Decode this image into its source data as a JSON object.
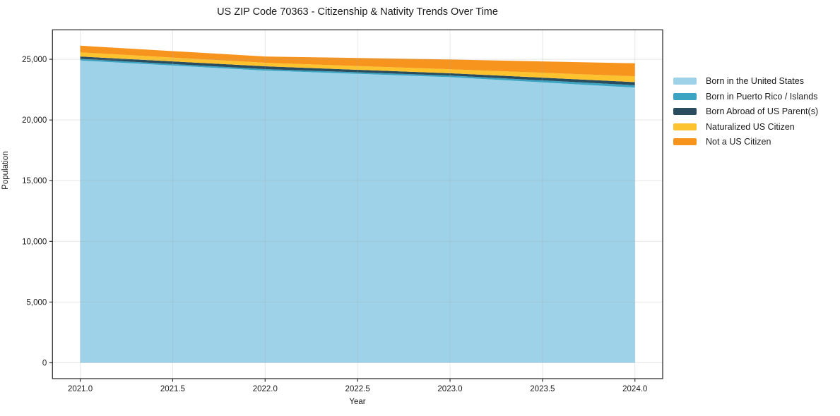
{
  "chart_data": {
    "type": "area",
    "stacked": true,
    "title": "US ZIP Code 70363 - Citizenship & Nativity Trends Over Time",
    "xlabel": "Year",
    "ylabel": "Population",
    "x": [
      2021,
      2022,
      2023,
      2024
    ],
    "series": [
      {
        "name": "Born in the United States",
        "color": "#9ed2e9",
        "values": [
          24900,
          24070,
          23530,
          22670
        ]
      },
      {
        "name": "Born in Puerto Rico / Islands",
        "color": "#3aa4c2",
        "values": [
          130,
          120,
          130,
          195
        ]
      },
      {
        "name": "Born Abroad of US Parent(s)",
        "color": "#294d5f",
        "values": [
          200,
          230,
          190,
          255
        ]
      },
      {
        "name": "Naturalized US Citizen",
        "color": "#fcc32f",
        "values": [
          340,
          290,
          330,
          480
        ]
      },
      {
        "name": "Not a US Citizen",
        "color": "#f7941e",
        "values": [
          550,
          520,
          800,
          1070
        ]
      }
    ],
    "x_ticks": [
      2021.0,
      2021.5,
      2022.0,
      2022.5,
      2023.0,
      2023.5,
      2024.0
    ],
    "x_tick_labels": [
      "2021.0",
      "2021.5",
      "2022.0",
      "2022.5",
      "2023.0",
      "2023.5",
      "2024.0"
    ],
    "y_ticks": [
      0,
      5000,
      10000,
      15000,
      20000,
      25000
    ],
    "y_tick_labels": [
      "0",
      "5,000",
      "10,000",
      "15,000",
      "20,000",
      "25,000"
    ],
    "xlim": [
      2020.85,
      2024.15
    ],
    "ylim": [
      -1306,
      27426
    ],
    "grid": true,
    "legend_position": "right-outside",
    "colors": {
      "spine": "#333333",
      "grid": "rgba(170,170,170,0.28)",
      "tick": "#333333",
      "background": "#ffffff"
    }
  }
}
